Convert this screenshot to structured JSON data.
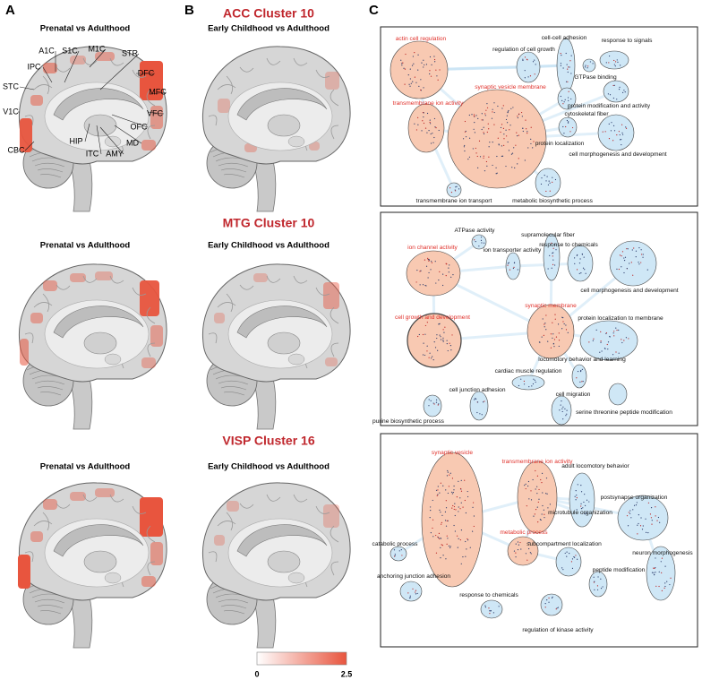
{
  "panel_labels": [
    "A",
    "B",
    "C"
  ],
  "rows": [
    {
      "title": "ACC Cluster 10",
      "columns": [
        "Prenatal vs Adulthood",
        "Early Childhood vs Adulthood"
      ]
    },
    {
      "title": "MTG Cluster 10",
      "columns": [
        "Prenatal vs Adulthood",
        "Early Childhood vs Adulthood"
      ]
    },
    {
      "title": "VISP Cluster 16",
      "columns": [
        "Prenatal vs Adulthood",
        "Early Childhood vs Adulthood"
      ]
    }
  ],
  "region_labels": [
    "A1C",
    "S1C",
    "M1C",
    "STR",
    "DFC",
    "IPC",
    "STC",
    "MFC",
    "V1C",
    "VFC",
    "OFC",
    "MD",
    "CBC",
    "HIP",
    "ITC",
    "AMY"
  ],
  "colorbar": {
    "min": 0,
    "max": 2.5,
    "colors": [
      "#ffffff",
      "#e8553e"
    ]
  },
  "networks": [
    {
      "nodes": [
        {
          "label": "actin cell regulation",
          "color": "#f8c9b2",
          "label_color": "#e0302a"
        },
        {
          "label": "regulation of cell growth",
          "color": "#cfe7f6",
          "label_color": "#111111"
        },
        {
          "label": "cell-cell adhesion",
          "color": "#cfe7f6",
          "label_color": "#111111"
        },
        {
          "label": "response to signals",
          "color": "#cfe7f6",
          "label_color": "#111111"
        },
        {
          "label": "GTPase binding",
          "color": "#cfe7f6",
          "label_color": "#111111"
        },
        {
          "label": "synaptic vesicle membrane",
          "color": "#f8c9b2",
          "label_color": "#e0302a"
        },
        {
          "label": "transmembrane ion activity",
          "color": "#f8c9b2",
          "label_color": "#e0302a"
        },
        {
          "label": "protein modification and activity",
          "color": "#cfe7f6",
          "label_color": "#111111"
        },
        {
          "label": "cytoskeletal fiber",
          "color": "#cfe7f6",
          "label_color": "#111111"
        },
        {
          "label": "cell morphogenesis and development",
          "color": "#cfe7f6",
          "label_color": "#111111"
        },
        {
          "label": "protein localization",
          "color": "#cfe7f6",
          "label_color": "#111111"
        },
        {
          "label": "transmembrane ion transport",
          "color": "#cfe7f6",
          "label_color": "#111111"
        },
        {
          "label": "metabolic biosynthetic process",
          "color": "#cfe7f6",
          "label_color": "#111111"
        }
      ]
    },
    {
      "nodes": [
        {
          "label": "ATPase activity",
          "color": "#cfe7f6",
          "label_color": "#111111"
        },
        {
          "label": "supramolecular fiber",
          "color": "#cfe7f6",
          "label_color": "#111111"
        },
        {
          "label": "ion channel activity",
          "color": "#f8c9b2",
          "label_color": "#e0302a"
        },
        {
          "label": "ion transporter activity",
          "color": "#cfe7f6",
          "label_color": "#111111"
        },
        {
          "label": "response to chemicals",
          "color": "#cfe7f6",
          "label_color": "#111111"
        },
        {
          "label": "cell morphogenesis and development",
          "color": "#cfe7f6",
          "label_color": "#111111"
        },
        {
          "label": "cell growth and development",
          "color": "#f8c9b2",
          "label_color": "#e0302a"
        },
        {
          "label": "synaptic membrane",
          "color": "#f8c9b2",
          "label_color": "#e0302a"
        },
        {
          "label": "protein localization to membrane",
          "color": "#cfe7f6",
          "label_color": "#111111"
        },
        {
          "label": "locomotory behavior and learning",
          "color": "#cfe7f6",
          "label_color": "#111111"
        },
        {
          "label": "cardiac muscle regulation",
          "color": "#cfe7f6",
          "label_color": "#111111"
        },
        {
          "label": "cell junction adhesion",
          "color": "#cfe7f6",
          "label_color": "#111111"
        },
        {
          "label": "cell migration",
          "color": "#cfe7f6",
          "label_color": "#111111"
        },
        {
          "label": "purine biosynthetic process",
          "color": "#cfe7f6",
          "label_color": "#111111"
        },
        {
          "label": "serine threonine peptide modification",
          "color": "#cfe7f6",
          "label_color": "#111111"
        }
      ]
    },
    {
      "nodes": [
        {
          "label": "synaptic vesicle",
          "color": "#f8c9b2",
          "label_color": "#e0302a"
        },
        {
          "label": "transmembrane ion activity",
          "color": "#f8c9b2",
          "label_color": "#e0302a"
        },
        {
          "label": "adult locomotory behavior",
          "color": "#cfe7f6",
          "label_color": "#111111"
        },
        {
          "label": "postsynapse organization",
          "color": "#cfe7f6",
          "label_color": "#111111"
        },
        {
          "label": "microtubule organization",
          "color": "#cfe7f6",
          "label_color": "#111111"
        },
        {
          "label": "metabolic process",
          "color": "#f8c9b2",
          "label_color": "#e0302a"
        },
        {
          "label": "catabolic process",
          "color": "#cfe7f6",
          "label_color": "#111111"
        },
        {
          "label": "subcompartment localization",
          "color": "#cfe7f6",
          "label_color": "#111111"
        },
        {
          "label": "neuron morphogenesis",
          "color": "#cfe7f6",
          "label_color": "#111111"
        },
        {
          "label": "peptide modification",
          "color": "#cfe7f6",
          "label_color": "#111111"
        },
        {
          "label": "anchoring junction adhesion",
          "color": "#cfe7f6",
          "label_color": "#111111"
        },
        {
          "label": "response to chemicals",
          "color": "#cfe7f6",
          "label_color": "#111111"
        },
        {
          "label": "regulation of kinase activity",
          "color": "#cfe7f6",
          "label_color": "#111111"
        }
      ]
    }
  ]
}
